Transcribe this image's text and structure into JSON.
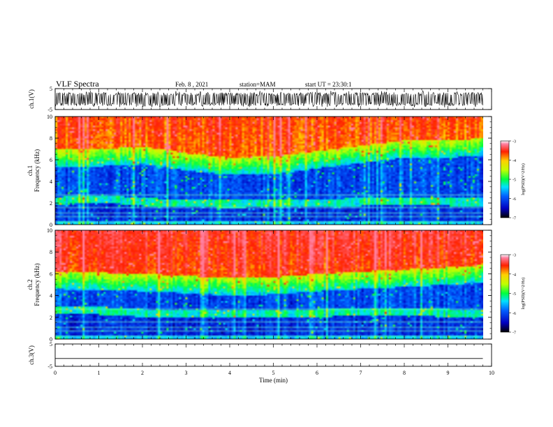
{
  "header": {
    "title": "VLF Spectra",
    "date": "Feb. 8 , 2021",
    "station": "station=MAM",
    "start": "start UT = 23:30:1"
  },
  "chart_data": [
    {
      "type": "line",
      "panel": "ch1-waveform",
      "ylabel": "ch.1(V)",
      "ylim": [
        -5,
        5
      ],
      "yticks": [
        "5",
        "-5"
      ],
      "description_of_series": "dense spiky signal, about ±3 V",
      "xlim": [
        0,
        10
      ]
    },
    {
      "type": "heatmap",
      "panel": "ch1-spectrogram",
      "ylabel": "ch.1 Frequency (kHz)",
      "ylim": [
        0,
        10
      ],
      "yticks": [
        "0",
        "2",
        "4",
        "6",
        "8",
        "10"
      ],
      "xlim": [
        0,
        10
      ],
      "colorbar": {
        "label": "log(PSD)(V^2/Hz)",
        "range": [
          -7,
          -3
        ],
        "ticks": [
          "-3",
          "-4",
          "-5",
          "-6",
          "-7"
        ]
      },
      "band_profile_x": [
        0,
        1,
        2,
        3,
        4,
        5,
        6,
        7,
        8,
        9,
        9.8
      ],
      "band_profile_top_kHz": [
        6.0,
        6.0,
        6.2,
        5.6,
        5.2,
        5.3,
        5.8,
        6.3,
        6.8,
        6.8,
        7.0
      ],
      "lower_green_band_kHz": [
        2.2,
        2.4,
        2.1,
        2.0,
        1.9,
        2.0,
        2.0,
        2.1,
        2.2,
        2.1,
        2.1
      ]
    },
    {
      "type": "heatmap",
      "panel": "ch2-spectrogram",
      "ylabel": "ch.2 Frequency (kHz)",
      "ylim": [
        0,
        10
      ],
      "yticks": [
        "0",
        "2",
        "4",
        "6",
        "8",
        "10"
      ],
      "xlim": [
        0,
        10
      ],
      "colorbar": {
        "label": "log(PSD)(V^2/Hz)",
        "range": [
          -7,
          -3
        ],
        "ticks": [
          "-3",
          "-4",
          "-5",
          "-6",
          "-7"
        ]
      },
      "band_profile_x": [
        0,
        1,
        2,
        3,
        4,
        5,
        6,
        7,
        8,
        9,
        9.8
      ],
      "band_profile_top_kHz": [
        5.2,
        5.1,
        5.0,
        4.8,
        4.6,
        4.7,
        5.0,
        5.2,
        5.4,
        5.6,
        5.8
      ],
      "lower_green_band_kHz": [
        2.7,
        2.6,
        2.4,
        2.4,
        2.3,
        2.3,
        2.4,
        2.5,
        2.5,
        2.4,
        2.4
      ]
    },
    {
      "type": "line",
      "panel": "ch3-waveform",
      "ylabel": "ch.3(V)",
      "ylim": [
        -5,
        5
      ],
      "yticks": [
        "5",
        "-5"
      ],
      "x": [
        0,
        9.8
      ],
      "y": [
        -1.5,
        -1.5
      ],
      "xlim": [
        0,
        10
      ],
      "xlabel": "Time (min)",
      "xticks": [
        "0",
        "1",
        "2",
        "3",
        "4",
        "5",
        "6",
        "7",
        "8",
        "9",
        "10"
      ]
    }
  ],
  "colors": {
    "scale": [
      "#000080",
      "#0000ff",
      "#0080ff",
      "#00ffff",
      "#00ff00",
      "#ffff00",
      "#ff8000",
      "#ff0000",
      "#ffffff"
    ]
  }
}
